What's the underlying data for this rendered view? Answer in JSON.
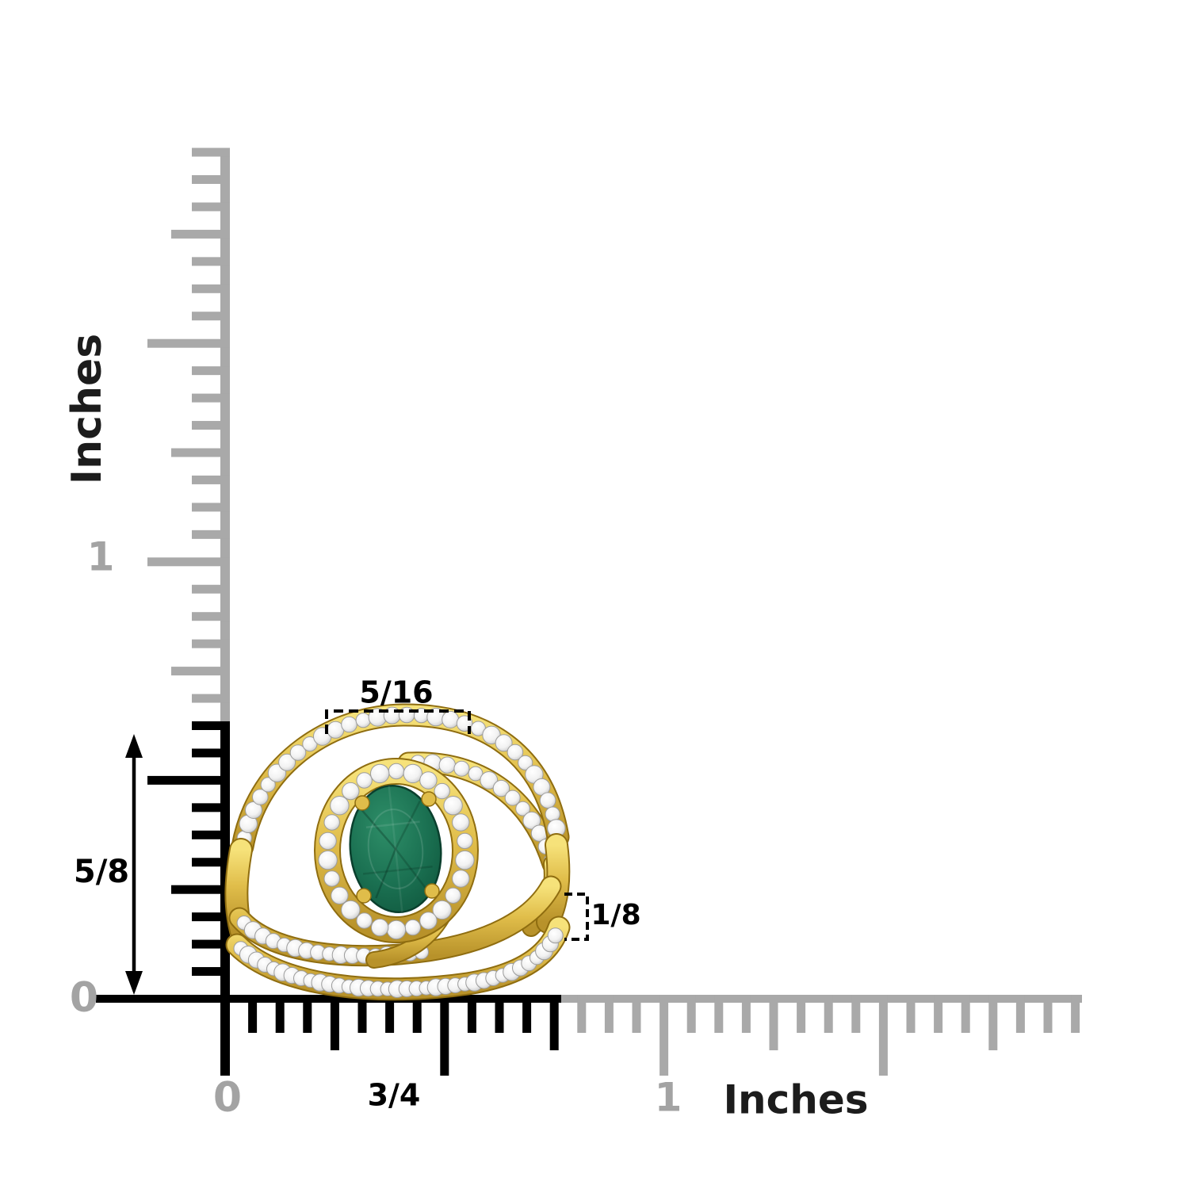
{
  "vertical_ruler": {
    "unit_label": "Inches",
    "one_label": "1",
    "zero_label": "0"
  },
  "horizontal_ruler": {
    "unit_label": "Inches",
    "one_label": "1",
    "zero_label": "0"
  },
  "measurements": {
    "height_label": "5/8",
    "width_label": "3/4",
    "top_width_label": "5/16",
    "thickness_label": "1/8",
    "unit": "Inches"
  },
  "colors": {
    "background": "#ffffff",
    "ruler_black": "#000000",
    "ruler_gray": "#a9a9a9",
    "label_gray": "#a3a3a3",
    "text_dark": "#1c1c1c",
    "gold_light": "#f6e27a",
    "gold": "#e0bd4a",
    "gold_dark": "#8f6d10",
    "gem": "#1b7152",
    "gem_light": "#2e8e68",
    "gem_dark": "#0c4f37",
    "diamond": "#f2f2f2",
    "diamond_edge": "#9c9c9c"
  }
}
